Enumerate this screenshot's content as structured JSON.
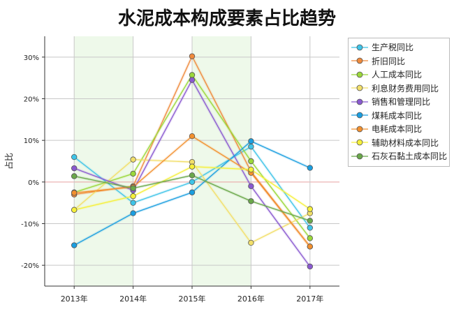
{
  "chart_data": {
    "type": "line",
    "title": "水泥成本构成要素占比趋势",
    "ylabel": "占比",
    "xlabel": "",
    "categories": [
      "2013年",
      "2014年",
      "2015年",
      "2016年",
      "2017年"
    ],
    "ylim": [
      -25,
      35
    ],
    "yticks": [
      -20,
      -10,
      0,
      10,
      20,
      30
    ],
    "ytick_labels": [
      "-20%",
      "-10%",
      "0%",
      "10%",
      "20%",
      "30%"
    ],
    "grid": true,
    "legend_position": "right",
    "shaded_bands": [
      [
        "2013年",
        "2014年"
      ],
      [
        "2015年",
        "2016年"
      ]
    ],
    "band_color": "#eef9ea",
    "zero_line_color": "#e8a0a0",
    "series": [
      {
        "name": "生产税同比",
        "color": "#3fc4e8",
        "values": [
          6.0,
          -5.0,
          0.0,
          8.5,
          -11.0
        ]
      },
      {
        "name": "折旧同比",
        "color": "#ef8a3c",
        "values": [
          -3.0,
          -1.0,
          30.2,
          2.5,
          -15.5
        ]
      },
      {
        "name": "人工成本同比",
        "color": "#9bd83a",
        "values": [
          -2.5,
          2.0,
          25.7,
          5.0,
          -13.5
        ]
      },
      {
        "name": "利息财务费用同比",
        "color": "#f2df6a",
        "values": [
          -6.7,
          5.4,
          4.8,
          -14.6,
          -7.5
        ]
      },
      {
        "name": "销售和管理同比",
        "color": "#8a5ad0",
        "values": [
          3.3,
          -2.0,
          24.5,
          -1.0,
          -20.3
        ]
      },
      {
        "name": "煤耗成本同比",
        "color": "#1a9ee0",
        "values": [
          -15.2,
          -7.5,
          -2.5,
          9.8,
          3.4
        ]
      },
      {
        "name": "电耗成本同比",
        "color": "#f2902e",
        "values": [
          -2.6,
          -1.2,
          11.0,
          2.2,
          -15.5
        ]
      },
      {
        "name": "辅助材料成本同比",
        "color": "#f6f03a",
        "values": [
          -6.7,
          -3.4,
          3.7,
          3.0,
          -6.5
        ]
      },
      {
        "name": "石灰石黏土成本同比",
        "color": "#6aa84a",
        "values": [
          1.4,
          -1.5,
          1.6,
          -4.6,
          -9.3
        ]
      }
    ]
  }
}
